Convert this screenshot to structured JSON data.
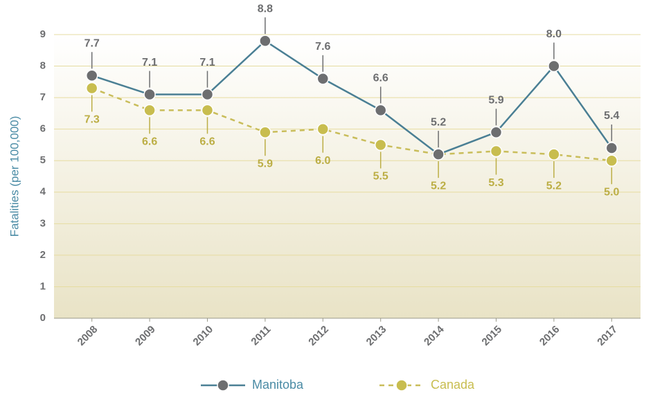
{
  "chart_data": {
    "type": "line",
    "y_label": "Fatalities (per 100,000)",
    "categories": [
      "2008",
      "2009",
      "2010",
      "2011",
      "2012",
      "2013",
      "2014",
      "2015",
      "2016",
      "2017"
    ],
    "series": [
      {
        "name": "Manitoba",
        "color": "#4a7f94",
        "marker_color": "#6d6e70",
        "label_color": "#6d6e70",
        "dashed": false,
        "values": [
          7.7,
          7.1,
          7.1,
          8.8,
          7.6,
          6.6,
          5.2,
          5.9,
          8.0,
          5.4
        ],
        "value_labels": [
          "7.7",
          "7.1",
          "7.1",
          "8.8",
          "7.6",
          "6.6",
          "5.2",
          "5.9",
          "8.0",
          "5.4"
        ]
      },
      {
        "name": "Canada",
        "color": "#c9bd5a",
        "marker_color": "#c8bd4f",
        "label_color": "#bcae45",
        "dashed": true,
        "values": [
          7.3,
          6.6,
          6.6,
          5.9,
          6.0,
          5.5,
          5.2,
          5.3,
          5.2,
          5.0
        ],
        "value_labels": [
          "7.3",
          "6.6",
          "6.6",
          "5.9",
          "6.0",
          "5.5",
          "5.2",
          "5.3",
          "5.2",
          "5.0"
        ]
      }
    ],
    "ylim": [
      0,
      9
    ],
    "yticks": [
      0,
      1,
      2,
      3,
      4,
      5,
      6,
      7,
      8,
      9
    ],
    "grid": true
  }
}
